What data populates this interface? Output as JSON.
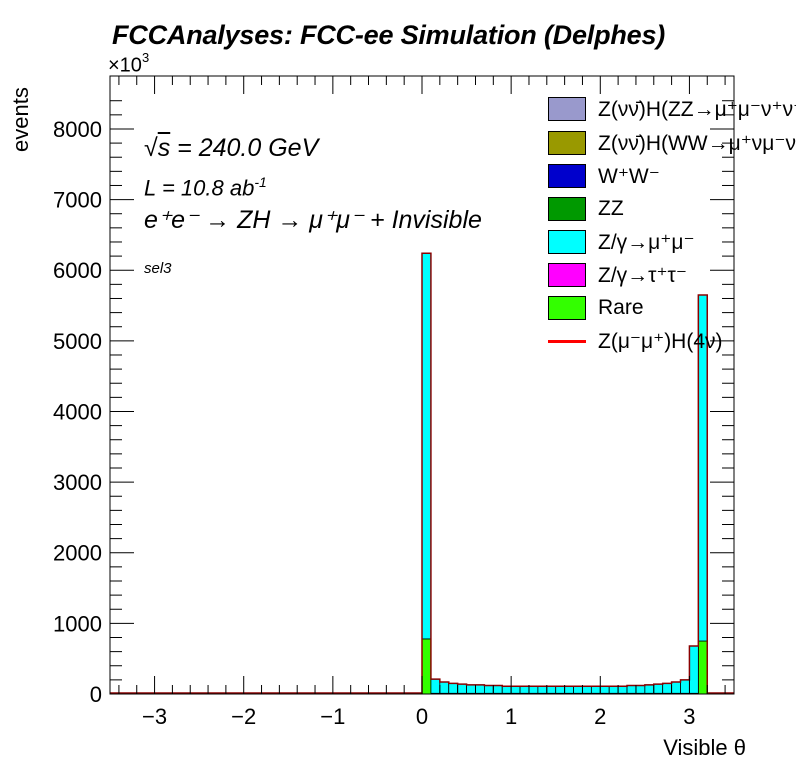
{
  "chart_data": {
    "type": "bar",
    "stacked": true,
    "title": "FCCAnalyses: FCC-ee Simulation (Delphes)",
    "xlabel": "Visible θ",
    "ylabel": "events",
    "y_multiplier": "×10",
    "y_multiplier_exp": "3",
    "xlim": [
      -3.5,
      3.5
    ],
    "ylim": [
      0,
      8.75
    ],
    "x_ticks": [
      -3,
      -2,
      -1,
      0,
      1,
      2,
      3
    ],
    "x_tick_labels": [
      "−3",
      "−2",
      "−1",
      "0",
      "1",
      "2",
      "3"
    ],
    "y_ticks": [
      0,
      1000,
      2000,
      3000,
      4000,
      5000,
      6000,
      7000,
      8000
    ],
    "y_tick_labels": [
      "0",
      "1000",
      "2000",
      "3000",
      "4000",
      "5000",
      "6000",
      "7000",
      "8000"
    ],
    "bin_width": 0.1,
    "bin_edges_start": 0.0,
    "series": [
      {
        "name": "Rare",
        "color": "#33ff00",
        "values": [
          0.78,
          0.01,
          0.01,
          0.01,
          0.01,
          0.01,
          0.01,
          0.01,
          0.01,
          0.01,
          0.01,
          0.01,
          0.01,
          0.01,
          0.01,
          0.01,
          0.01,
          0.01,
          0.01,
          0.01,
          0.01,
          0.01,
          0.01,
          0.01,
          0.01,
          0.01,
          0.01,
          0.01,
          0.01,
          0.01,
          0.01,
          0.75
        ]
      },
      {
        "name": "Z/γ→μ⁺μ⁻",
        "color": "#00ffff",
        "values": [
          5.46,
          0.2,
          0.16,
          0.14,
          0.13,
          0.12,
          0.12,
          0.11,
          0.11,
          0.1,
          0.1,
          0.1,
          0.1,
          0.1,
          0.1,
          0.1,
          0.1,
          0.1,
          0.1,
          0.1,
          0.1,
          0.1,
          0.1,
          0.11,
          0.11,
          0.12,
          0.13,
          0.14,
          0.16,
          0.19,
          0.67,
          4.9
        ]
      }
    ],
    "legend_position": "top-right"
  },
  "annotations": {
    "sqrt_s_sym": "s",
    "sqrt_s_rest": " = 240.0 GeV",
    "lumi": "L = 10.8 ab",
    "lumi_exp": "-1",
    "process": "e⁺e⁻ → ZH → μ⁺μ⁻ + Invisible",
    "selection": "sel3"
  },
  "legend": [
    {
      "label": "Z(νν̄)H(ZZ→μ⁺μ⁻ν⁺ν⁻)",
      "color": "#9999cc",
      "kind": "box"
    },
    {
      "label": "Z(νν̄)H(WW→μ⁺νμ⁻ν)",
      "color": "#999900",
      "kind": "box"
    },
    {
      "label": "W⁺W⁻",
      "color": "#0000cc",
      "kind": "box"
    },
    {
      "label": "ZZ",
      "color": "#009900",
      "kind": "box"
    },
    {
      "label": "Z/γ→μ⁺μ⁻",
      "color": "#00ffff",
      "kind": "box"
    },
    {
      "label": "Z/γ→τ⁺τ⁻",
      "color": "#ff00ff",
      "kind": "box"
    },
    {
      "label": "Rare",
      "color": "#33ff00",
      "kind": "box"
    },
    {
      "label": "Z(μ⁻μ⁺)H(4ν)",
      "color": "#ff0000",
      "kind": "line"
    }
  ]
}
